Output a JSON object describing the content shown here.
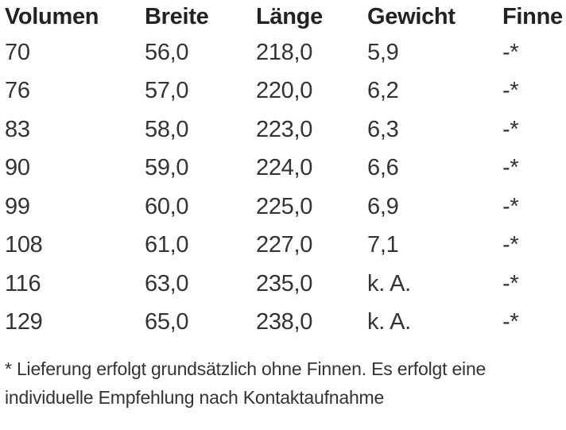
{
  "table": {
    "headers": [
      "Volumen",
      "Breite",
      "Länge",
      "Gewicht",
      "Finne"
    ],
    "rows": [
      [
        "70",
        "56,0",
        "218,0",
        "5,9",
        "-*"
      ],
      [
        "76",
        "57,0",
        "220,0",
        "6,2",
        "-*"
      ],
      [
        "83",
        "58,0",
        "223,0",
        "6,3",
        "-*"
      ],
      [
        "90",
        "59,0",
        "224,0",
        "6,6",
        "-*"
      ],
      [
        "99",
        "60,0",
        "225,0",
        "6,9",
        "-*"
      ],
      [
        "108",
        "61,0",
        "227,0",
        "7,1",
        "-*"
      ],
      [
        "116",
        "63,0",
        "235,0",
        "k. A.",
        "-*"
      ],
      [
        "129",
        "65,0",
        "238,0",
        "k. A.",
        "-*"
      ]
    ]
  },
  "footnote": {
    "line1": "* Lieferung erfolgt grundsätzlich ohne Finnen. Es erfolgt eine",
    "line2": "individuelle Empfehlung nach Kontaktaufnahme"
  }
}
